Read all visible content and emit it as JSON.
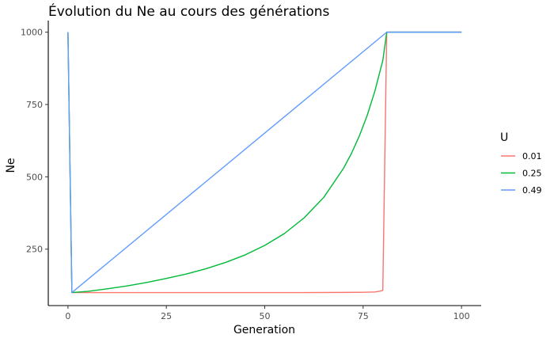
{
  "chart_data": {
    "type": "line",
    "title": "Évolution du Ne au cours des générations",
    "xlabel": "Generation",
    "ylabel": "Ne",
    "xlim": [
      -5,
      105
    ],
    "ylim": [
      55,
      1040
    ],
    "xticks": [
      0,
      25,
      50,
      75,
      100
    ],
    "yticks": [
      250,
      500,
      750,
      1000
    ],
    "grid": false,
    "legend": {
      "title": "U",
      "position": "right"
    },
    "series": [
      {
        "name": "0.01",
        "color": "#F8766D",
        "x": [
          0,
          1,
          10,
          20,
          30,
          40,
          50,
          60,
          70,
          75,
          78,
          79,
          80,
          81,
          100
        ],
        "y": [
          1000,
          100,
          100,
          100,
          100,
          100,
          100,
          100,
          100.5,
          101,
          102,
          104,
          107,
          1000,
          1000
        ]
      },
      {
        "name": "0.25",
        "color": "#00BA38",
        "x": [
          0,
          1,
          5,
          10,
          15,
          20,
          25,
          30,
          35,
          40,
          45,
          50,
          55,
          60,
          65,
          70,
          72,
          74,
          76,
          78,
          80,
          81,
          100
        ],
        "y": [
          1000,
          100,
          104,
          113,
          123,
          135,
          149,
          164,
          182,
          204,
          230,
          263,
          304,
          358,
          429,
          529,
          580,
          640,
          711,
          797,
          902,
          1000,
          1000
        ]
      },
      {
        "name": "0.49",
        "color": "#619CFF",
        "x": [
          0,
          1,
          81,
          100
        ],
        "y": [
          1000,
          100,
          1000,
          1000
        ]
      }
    ]
  }
}
